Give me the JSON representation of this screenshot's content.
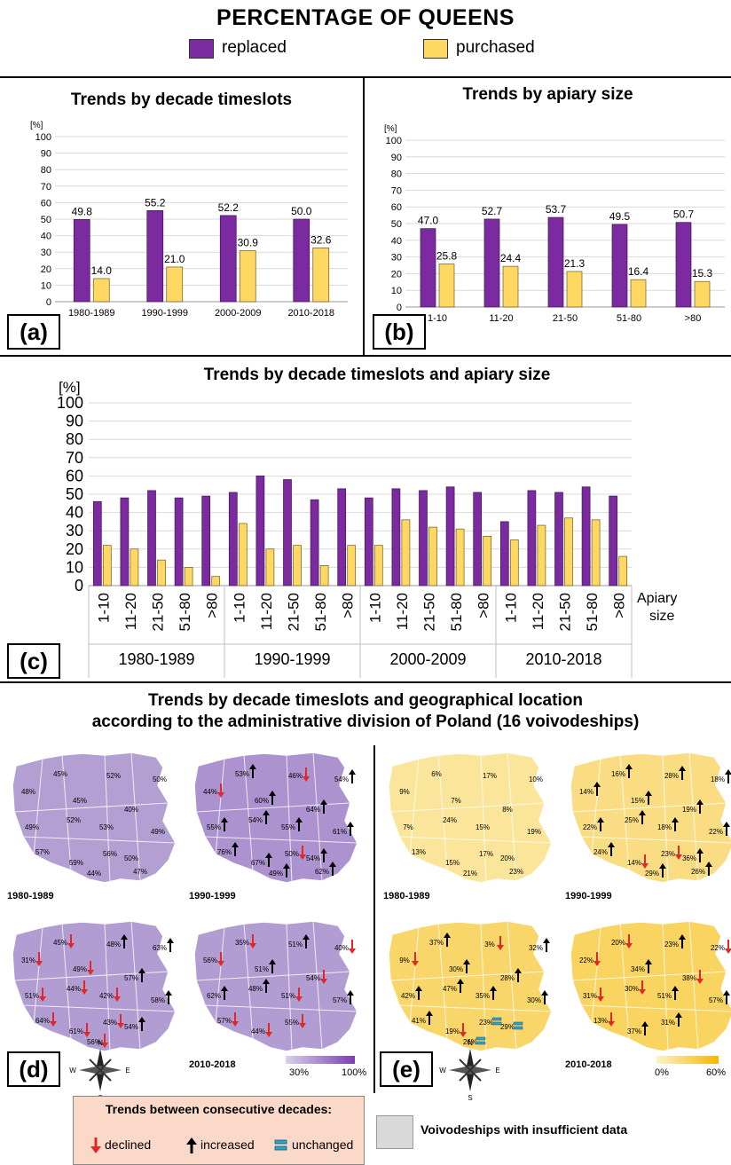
{
  "title": "PERCENTAGE OF QUEENS",
  "legend": [
    {
      "label": "replaced",
      "color": "#7b2aa0"
    },
    {
      "label": "purchased",
      "color": "#ffd863"
    }
  ],
  "colors": {
    "replaced": "#7b2aa0",
    "purchased": "#ffd863",
    "map_low_purple": "#c9c5e0",
    "map_high_purple": "#7c3fb0",
    "map_low_yellow": "#fdf3cc",
    "map_high_yellow": "#f5b700",
    "declined": "#e32626",
    "increased": "#000000",
    "unchanged": "#2aa6c9",
    "insufficient": "#d9d9d9"
  },
  "panel_labels": {
    "a": "(a)",
    "b": "(b)",
    "c": "(c)",
    "d": "(d)",
    "e": "(e)"
  },
  "chart_data": [
    {
      "type": "bar",
      "title": "Trends by decade timeslots",
      "ylabel": "[%]",
      "ylim": [
        0,
        100
      ],
      "yticks": [
        "0",
        "10",
        "20",
        "30",
        "40",
        "50",
        "60",
        "70",
        "80",
        "90",
        "100"
      ],
      "categories": [
        "1980-1989",
        "1990-1999",
        "2000-2009",
        "2010-2018"
      ],
      "series": [
        {
          "name": "replaced",
          "values": [
            49.8,
            55.2,
            52.2,
            50.0
          ],
          "labels": [
            "49.8",
            "55.2",
            "52.2",
            "50.0"
          ]
        },
        {
          "name": "purchased",
          "values": [
            14.0,
            21.0,
            30.9,
            32.6
          ],
          "labels": [
            "14.0",
            "21.0",
            "30.9",
            "32.6"
          ]
        }
      ]
    },
    {
      "type": "bar",
      "title": "Trends by apiary size",
      "ylabel": "[%]",
      "ylim": [
        0,
        100
      ],
      "yticks": [
        "0",
        "10",
        "20",
        "30",
        "40",
        "50",
        "60",
        "70",
        "80",
        "90",
        "100"
      ],
      "categories": [
        "1-10",
        "11-20",
        "21-50",
        "51-80",
        ">80"
      ],
      "series": [
        {
          "name": "replaced",
          "values": [
            47.0,
            52.7,
            53.7,
            49.5,
            50.7
          ],
          "labels": [
            "47.0",
            "52.7",
            "53.7",
            "49.5",
            "50.7"
          ]
        },
        {
          "name": "purchased",
          "values": [
            25.8,
            24.4,
            21.3,
            16.4,
            15.3
          ],
          "labels": [
            "25.8",
            "24.4",
            "21.3",
            "16.4",
            "15.3"
          ]
        }
      ]
    },
    {
      "type": "bar",
      "title": "Trends by decade timeslots and apiary size",
      "ylabel": "[%]",
      "ylim": [
        0,
        100
      ],
      "yticks": [
        "0",
        "10",
        "20",
        "30",
        "40",
        "50",
        "60",
        "70",
        "80",
        "90",
        "100"
      ],
      "xlabel": [
        "Apiary",
        "size"
      ],
      "groups": [
        "1980-1989",
        "1990-1999",
        "2000-2009",
        "2010-2018"
      ],
      "categories": [
        "1-10",
        "11-20",
        "21-50",
        "51-80",
        ">80"
      ],
      "series": [
        {
          "name": "replaced",
          "values": [
            [
              46,
              48,
              52,
              48,
              49
            ],
            [
              51,
              60,
              58,
              47,
              53
            ],
            [
              48,
              53,
              52,
              54,
              51
            ],
            [
              35,
              52,
              51,
              54,
              49
            ]
          ]
        },
        {
          "name": "purchased",
          "values": [
            [
              22,
              20,
              14,
              10,
              5
            ],
            [
              34,
              20,
              22,
              11,
              22
            ],
            [
              22,
              36,
              32,
              31,
              27
            ],
            [
              25,
              33,
              37,
              36,
              16
            ]
          ]
        }
      ]
    }
  ],
  "maps": {
    "title_line1": "Trends by decade timeslots and geographical location",
    "title_line2": "according to the administrative division of Poland (16 voivodeships)",
    "decades": [
      "1980-1989",
      "1990-1999",
      "2000-2009",
      "2010-2018"
    ],
    "replaced": [
      {
        "decade": "1980-1989",
        "values": [
          "45%",
          "52%",
          "48%",
          "50%",
          "45%",
          "40%",
          "49%",
          "52%",
          "53%",
          "49%",
          "57%",
          "59%",
          "56%",
          "50%",
          "44%",
          "47%"
        ],
        "trends": []
      },
      {
        "decade": "1990-1999",
        "values": [
          "53%",
          "46%",
          "44%",
          "54%",
          "60%",
          "64%",
          "55%",
          "54%",
          "55%",
          "61%",
          "76%",
          "67%",
          "50%",
          "54%",
          "49%",
          "62%"
        ],
        "trends": [
          "up",
          "down",
          "down",
          "up",
          "up",
          "up",
          "up",
          "up",
          "up",
          "up",
          "up",
          "up",
          "down",
          "up",
          "up",
          "up"
        ]
      },
      {
        "decade": "2000-2009",
        "values": [
          "45%",
          "48%",
          "31%",
          "63%",
          "49%",
          "57%",
          "51%",
          "44%",
          "42%",
          "58%",
          "64%",
          "61%",
          "43%",
          "54%",
          "56%"
        ],
        "trends": [
          "down",
          "up",
          "down",
          "up",
          "down",
          "up",
          "down",
          "down",
          "down",
          "up",
          "down",
          "down",
          "down",
          "up",
          "down"
        ]
      },
      {
        "decade": "2010-2018",
        "values": [
          "35%",
          "51%",
          "56%",
          "40%",
          "51%",
          "54%",
          "62%",
          "48%",
          "51%",
          "57%",
          "57%",
          "44%",
          "55%"
        ],
        "trends": [
          "down",
          "up",
          "down",
          "down",
          "up",
          "down",
          "up",
          "up",
          "down",
          "up",
          "down",
          "down",
          "down"
        ]
      }
    ],
    "purchased": [
      {
        "decade": "1980-1989",
        "values": [
          "6%",
          "17%",
          "9%",
          "10%",
          "7%",
          "8%",
          "7%",
          "24%",
          "15%",
          "19%",
          "13%",
          "15%",
          "17%",
          "20%",
          "21%",
          "23%"
        ],
        "trends": []
      },
      {
        "decade": "1990-1999",
        "values": [
          "16%",
          "28%",
          "14%",
          "18%",
          "15%",
          "19%",
          "22%",
          "25%",
          "18%",
          "22%",
          "24%",
          "14%",
          "23%",
          "36%",
          "29%",
          "26%"
        ],
        "trends": [
          "up",
          "up",
          "up",
          "up",
          "up",
          "up",
          "up",
          "up",
          "up",
          "up",
          "up",
          "down",
          "down",
          "up",
          "up",
          "up"
        ]
      },
      {
        "decade": "2000-2009",
        "values": [
          "37%",
          "3%",
          "9%",
          "32%",
          "30%",
          "28%",
          "42%",
          "47%",
          "35%",
          "30%",
          "41%",
          "19%",
          "23%",
          "29%",
          "26%"
        ],
        "trends": [
          "up",
          "down",
          "down",
          "up",
          "up",
          "up",
          "up",
          "up",
          "up",
          "up",
          "up",
          "down",
          "same",
          "same",
          "same"
        ]
      },
      {
        "decade": "2010-2018",
        "values": [
          "20%",
          "23%",
          "22%",
          "22%",
          "34%",
          "38%",
          "31%",
          "30%",
          "51%",
          "57%",
          "13%",
          "37%",
          "31%"
        ],
        "trends": [
          "down",
          "up",
          "down",
          "down",
          "up",
          "down",
          "down",
          "down",
          "up",
          "up",
          "down",
          "up",
          "up"
        ]
      }
    ],
    "scale_purple": [
      "30%",
      "100%"
    ],
    "scale_yellow": [
      "0%",
      "60%"
    ],
    "compass": [
      "N",
      "E",
      "S",
      "W"
    ]
  },
  "trend_legend": {
    "title": "Trends between consecutive decades:",
    "declined": "declined",
    "increased": "increased",
    "unchanged": "unchanged"
  },
  "insufficient_label": "Voivodeships with insufficient data"
}
